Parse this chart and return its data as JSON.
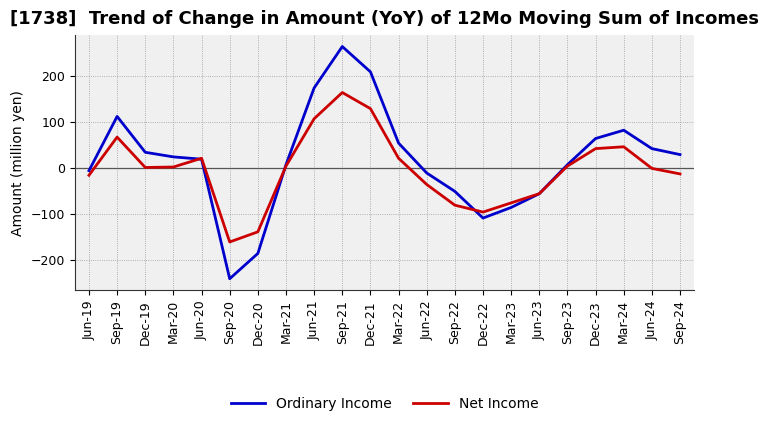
{
  "title": "[1738]  Trend of Change in Amount (YoY) of 12Mo Moving Sum of Incomes",
  "ylabel": "Amount (million yen)",
  "x_labels": [
    "Jun-19",
    "Sep-19",
    "Dec-19",
    "Mar-20",
    "Jun-20",
    "Sep-20",
    "Dec-20",
    "Mar-21",
    "Jun-21",
    "Sep-21",
    "Dec-21",
    "Mar-22",
    "Jun-22",
    "Sep-22",
    "Dec-22",
    "Mar-23",
    "Jun-23",
    "Sep-23",
    "Dec-23",
    "Mar-24",
    "Jun-24",
    "Sep-24"
  ],
  "ordinary_income": [
    -5,
    113,
    35,
    25,
    20,
    -240,
    -185,
    8,
    175,
    265,
    210,
    55,
    -10,
    -50,
    -108,
    -85,
    -55,
    8,
    65,
    83,
    43,
    30
  ],
  "net_income": [
    -15,
    68,
    2,
    3,
    22,
    -160,
    -138,
    5,
    108,
    165,
    130,
    22,
    -35,
    -80,
    -95,
    -75,
    -55,
    5,
    43,
    47,
    0,
    -12
  ],
  "ordinary_color": "#0000cc",
  "net_color": "#cc0000",
  "ylim": [
    -265,
    290
  ],
  "yticks": [
    -200,
    -100,
    0,
    100,
    200
  ],
  "background_color": "#ffffff",
  "plot_bg_color": "#f0f0f0",
  "grid_color": "#999999",
  "legend_labels": [
    "Ordinary Income",
    "Net Income"
  ],
  "title_fontsize": 13,
  "ylabel_fontsize": 10,
  "tick_fontsize": 9,
  "legend_fontsize": 10,
  "linewidth": 2.0
}
